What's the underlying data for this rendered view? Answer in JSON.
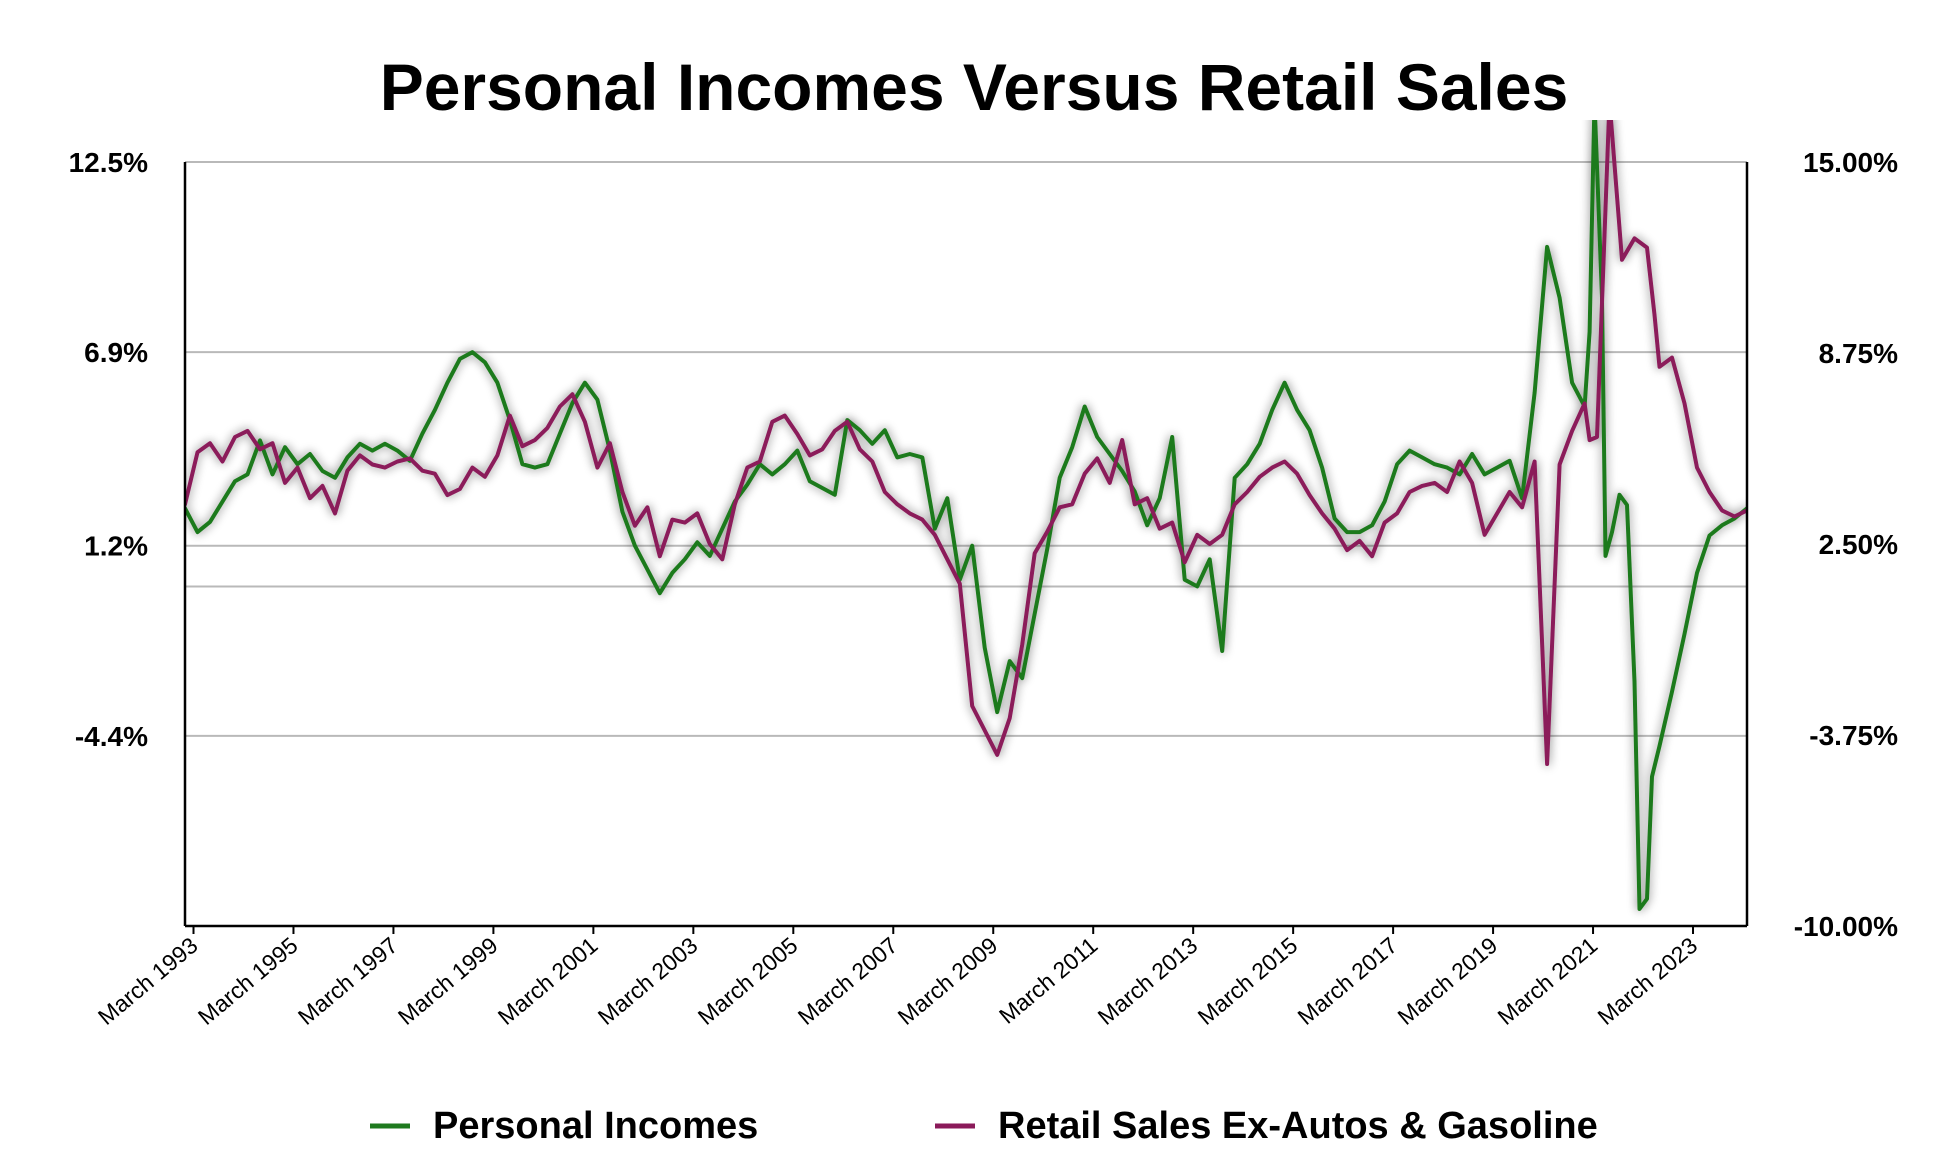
{
  "chart_data": {
    "type": "line",
    "title": "Personal Incomes Versus Retail Sales",
    "x_range": [
      "1993-01",
      "2023-06"
    ],
    "x_ticks": [
      "March 1993",
      "March 1995",
      "March 1997",
      "March 1999",
      "March 2001",
      "March 2003",
      "March 2005",
      "March 2007",
      "March 2009",
      "March 2011",
      "March 2013",
      "March 2015",
      "March 2017",
      "March 2019",
      "March 2021",
      "March 2023"
    ],
    "x_tick_values": [
      1993.17,
      1995.17,
      1997.17,
      1999.17,
      2001.17,
      2003.17,
      2005.17,
      2007.17,
      2009.17,
      2011.17,
      2013.17,
      2015.17,
      2017.17,
      2019.17,
      2021.17,
      2023.17
    ],
    "y_left": {
      "ticks": [
        "12.5%",
        "6.9%",
        "1.2%",
        "-4.4%"
      ],
      "tick_values": [
        12.5,
        6.9,
        1.2,
        -4.4
      ],
      "range": [
        -10.0,
        12.5
      ]
    },
    "y_right": {
      "ticks": [
        "15.00%",
        "8.75%",
        "2.50%",
        "-3.75%",
        "-10.00%"
      ],
      "tick_values": [
        15.0,
        8.75,
        2.5,
        -3.75,
        -10.0
      ],
      "range": [
        -10.0,
        15.0
      ]
    },
    "grid": true,
    "legend_position": "bottom",
    "series": [
      {
        "name": "Personal Incomes",
        "color": "#1f7a1f",
        "axis": "left",
        "points": [
          [
            1993.0,
            2.3
          ],
          [
            1993.25,
            1.6
          ],
          [
            1993.5,
            1.9
          ],
          [
            1993.75,
            2.5
          ],
          [
            1994.0,
            3.1
          ],
          [
            1994.25,
            3.3
          ],
          [
            1994.5,
            4.3
          ],
          [
            1994.75,
            3.3
          ],
          [
            1995.0,
            4.1
          ],
          [
            1995.25,
            3.6
          ],
          [
            1995.5,
            3.9
          ],
          [
            1995.75,
            3.4
          ],
          [
            1996.0,
            3.2
          ],
          [
            1996.25,
            3.8
          ],
          [
            1996.5,
            4.2
          ],
          [
            1996.75,
            4.0
          ],
          [
            1997.0,
            4.2
          ],
          [
            1997.25,
            4.0
          ],
          [
            1997.5,
            3.7
          ],
          [
            1997.75,
            4.5
          ],
          [
            1998.0,
            5.2
          ],
          [
            1998.25,
            6.0
          ],
          [
            1998.5,
            6.7
          ],
          [
            1998.75,
            6.9
          ],
          [
            1999.0,
            6.6
          ],
          [
            1999.25,
            6.0
          ],
          [
            1999.5,
            4.9
          ],
          [
            1999.75,
            3.6
          ],
          [
            2000.0,
            3.5
          ],
          [
            2000.25,
            3.6
          ],
          [
            2000.5,
            4.5
          ],
          [
            2000.75,
            5.4
          ],
          [
            2001.0,
            6.0
          ],
          [
            2001.25,
            5.5
          ],
          [
            2001.5,
            4.0
          ],
          [
            2001.75,
            2.2
          ],
          [
            2002.0,
            1.2
          ],
          [
            2002.25,
            0.5
          ],
          [
            2002.5,
            -0.2
          ],
          [
            2002.75,
            0.4
          ],
          [
            2003.0,
            0.8
          ],
          [
            2003.25,
            1.3
          ],
          [
            2003.5,
            0.9
          ],
          [
            2003.75,
            1.7
          ],
          [
            2004.0,
            2.5
          ],
          [
            2004.25,
            3.0
          ],
          [
            2004.5,
            3.6
          ],
          [
            2004.75,
            3.3
          ],
          [
            2005.0,
            3.6
          ],
          [
            2005.25,
            4.0
          ],
          [
            2005.5,
            3.1
          ],
          [
            2005.75,
            2.9
          ],
          [
            2006.0,
            2.7
          ],
          [
            2006.25,
            4.9
          ],
          [
            2006.5,
            4.6
          ],
          [
            2006.75,
            4.2
          ],
          [
            2007.0,
            4.6
          ],
          [
            2007.25,
            3.8
          ],
          [
            2007.5,
            3.9
          ],
          [
            2007.75,
            3.8
          ],
          [
            2008.0,
            1.7
          ],
          [
            2008.25,
            2.6
          ],
          [
            2008.5,
            0.2
          ],
          [
            2008.75,
            1.2
          ],
          [
            2009.0,
            -1.8
          ],
          [
            2009.25,
            -3.7
          ],
          [
            2009.5,
            -2.2
          ],
          [
            2009.75,
            -2.7
          ],
          [
            2010.0,
            -0.8
          ],
          [
            2010.25,
            1.1
          ],
          [
            2010.5,
            3.2
          ],
          [
            2010.75,
            4.1
          ],
          [
            2011.0,
            5.3
          ],
          [
            2011.25,
            4.4
          ],
          [
            2011.5,
            3.9
          ],
          [
            2011.75,
            3.4
          ],
          [
            2012.0,
            2.8
          ],
          [
            2012.25,
            1.8
          ],
          [
            2012.5,
            2.6
          ],
          [
            2012.75,
            4.4
          ],
          [
            2013.0,
            0.2
          ],
          [
            2013.25,
            0.0
          ],
          [
            2013.5,
            0.8
          ],
          [
            2013.75,
            -1.9
          ],
          [
            2014.0,
            3.2
          ],
          [
            2014.25,
            3.6
          ],
          [
            2014.5,
            4.2
          ],
          [
            2014.75,
            5.2
          ],
          [
            2015.0,
            6.0
          ],
          [
            2015.25,
            5.2
          ],
          [
            2015.5,
            4.6
          ],
          [
            2015.75,
            3.5
          ],
          [
            2016.0,
            2.0
          ],
          [
            2016.25,
            1.6
          ],
          [
            2016.5,
            1.6
          ],
          [
            2016.75,
            1.8
          ],
          [
            2017.0,
            2.5
          ],
          [
            2017.25,
            3.6
          ],
          [
            2017.5,
            4.0
          ],
          [
            2017.75,
            3.8
          ],
          [
            2018.0,
            3.6
          ],
          [
            2018.25,
            3.5
          ],
          [
            2018.5,
            3.3
          ],
          [
            2018.75,
            3.9
          ],
          [
            2019.0,
            3.3
          ],
          [
            2019.25,
            3.5
          ],
          [
            2019.5,
            3.7
          ],
          [
            2019.75,
            2.6
          ],
          [
            2020.0,
            5.7
          ],
          [
            2020.25,
            10.0
          ],
          [
            2020.5,
            8.5
          ],
          [
            2020.75,
            6.0
          ],
          [
            2021.0,
            5.3
          ],
          [
            2021.1,
            7.5
          ],
          [
            2021.2,
            14.3
          ],
          [
            2021.35,
            8.5
          ],
          [
            2021.42,
            0.9
          ],
          [
            2021.55,
            1.6
          ],
          [
            2021.7,
            2.7
          ],
          [
            2021.85,
            2.4
          ],
          [
            2022.0,
            -2.8
          ],
          [
            2022.1,
            -9.5
          ],
          [
            2022.25,
            -9.2
          ],
          [
            2022.35,
            -5.6
          ],
          [
            2022.5,
            -4.7
          ],
          [
            2022.75,
            -3.1
          ],
          [
            2023.0,
            -1.4
          ],
          [
            2023.25,
            0.4
          ],
          [
            2023.5,
            1.5
          ],
          [
            2023.75,
            1.8
          ],
          [
            2024.0,
            2.0
          ],
          [
            2024.25,
            2.3
          ]
        ]
      },
      {
        "name": "Retail Sales Ex-Autos & Gasoline",
        "color": "#8b1a5a",
        "axis": "right",
        "points": [
          [
            1993.0,
            3.8
          ],
          [
            1993.25,
            5.5
          ],
          [
            1993.5,
            5.8
          ],
          [
            1993.75,
            5.2
          ],
          [
            1994.0,
            6.0
          ],
          [
            1994.25,
            6.2
          ],
          [
            1994.5,
            5.6
          ],
          [
            1994.75,
            5.8
          ],
          [
            1995.0,
            4.5
          ],
          [
            1995.25,
            5.0
          ],
          [
            1995.5,
            4.0
          ],
          [
            1995.75,
            4.4
          ],
          [
            1996.0,
            3.5
          ],
          [
            1996.25,
            4.9
          ],
          [
            1996.5,
            5.4
          ],
          [
            1996.75,
            5.1
          ],
          [
            1997.0,
            5.0
          ],
          [
            1997.25,
            5.2
          ],
          [
            1997.5,
            5.3
          ],
          [
            1997.75,
            4.9
          ],
          [
            1998.0,
            4.8
          ],
          [
            1998.25,
            4.1
          ],
          [
            1998.5,
            4.3
          ],
          [
            1998.75,
            5.0
          ],
          [
            1999.0,
            4.7
          ],
          [
            1999.25,
            5.4
          ],
          [
            1999.5,
            6.7
          ],
          [
            1999.75,
            5.7
          ],
          [
            2000.0,
            5.9
          ],
          [
            2000.25,
            6.3
          ],
          [
            2000.5,
            7.0
          ],
          [
            2000.75,
            7.4
          ],
          [
            2001.0,
            6.5
          ],
          [
            2001.25,
            5.0
          ],
          [
            2001.5,
            5.8
          ],
          [
            2001.75,
            4.2
          ],
          [
            2002.0,
            3.1
          ],
          [
            2002.25,
            3.7
          ],
          [
            2002.5,
            2.1
          ],
          [
            2002.75,
            3.3
          ],
          [
            2003.0,
            3.2
          ],
          [
            2003.25,
            3.5
          ],
          [
            2003.5,
            2.5
          ],
          [
            2003.75,
            2.0
          ],
          [
            2004.0,
            3.8
          ],
          [
            2004.25,
            5.0
          ],
          [
            2004.5,
            5.2
          ],
          [
            2004.75,
            6.5
          ],
          [
            2005.0,
            6.7
          ],
          [
            2005.25,
            6.1
          ],
          [
            2005.5,
            5.4
          ],
          [
            2005.75,
            5.6
          ],
          [
            2006.0,
            6.2
          ],
          [
            2006.25,
            6.5
          ],
          [
            2006.5,
            5.6
          ],
          [
            2006.75,
            5.2
          ],
          [
            2007.0,
            4.2
          ],
          [
            2007.25,
            3.8
          ],
          [
            2007.5,
            3.5
          ],
          [
            2007.75,
            3.3
          ],
          [
            2008.0,
            2.8
          ],
          [
            2008.25,
            2.0
          ],
          [
            2008.5,
            1.2
          ],
          [
            2008.75,
            -2.8
          ],
          [
            2009.0,
            -3.6
          ],
          [
            2009.25,
            -4.4
          ],
          [
            2009.5,
            -3.2
          ],
          [
            2009.75,
            -0.8
          ],
          [
            2010.0,
            2.2
          ],
          [
            2010.25,
            2.9
          ],
          [
            2010.5,
            3.7
          ],
          [
            2010.75,
            3.8
          ],
          [
            2011.0,
            4.8
          ],
          [
            2011.25,
            5.3
          ],
          [
            2011.5,
            4.5
          ],
          [
            2011.75,
            5.9
          ],
          [
            2012.0,
            3.8
          ],
          [
            2012.25,
            4.0
          ],
          [
            2012.5,
            3.0
          ],
          [
            2012.75,
            3.2
          ],
          [
            2013.0,
            1.9
          ],
          [
            2013.25,
            2.8
          ],
          [
            2013.5,
            2.5
          ],
          [
            2013.75,
            2.8
          ],
          [
            2014.0,
            3.8
          ],
          [
            2014.25,
            4.2
          ],
          [
            2014.5,
            4.7
          ],
          [
            2014.75,
            5.0
          ],
          [
            2015.0,
            5.2
          ],
          [
            2015.25,
            4.8
          ],
          [
            2015.5,
            4.1
          ],
          [
            2015.75,
            3.5
          ],
          [
            2016.0,
            3.0
          ],
          [
            2016.25,
            2.3
          ],
          [
            2016.5,
            2.6
          ],
          [
            2016.75,
            2.1
          ],
          [
            2017.0,
            3.2
          ],
          [
            2017.25,
            3.5
          ],
          [
            2017.5,
            4.2
          ],
          [
            2017.75,
            4.4
          ],
          [
            2018.0,
            4.5
          ],
          [
            2018.25,
            4.2
          ],
          [
            2018.5,
            5.2
          ],
          [
            2018.75,
            4.5
          ],
          [
            2019.0,
            2.8
          ],
          [
            2019.25,
            3.5
          ],
          [
            2019.5,
            4.2
          ],
          [
            2019.75,
            3.7
          ],
          [
            2020.0,
            5.2
          ],
          [
            2020.25,
            -4.7
          ],
          [
            2020.5,
            5.1
          ],
          [
            2020.75,
            6.2
          ],
          [
            2021.0,
            7.1
          ],
          [
            2021.1,
            5.9
          ],
          [
            2021.25,
            6.0
          ],
          [
            2021.5,
            17.0
          ],
          [
            2021.75,
            11.8
          ],
          [
            2022.0,
            12.5
          ],
          [
            2022.25,
            12.2
          ],
          [
            2022.4,
            10.0
          ],
          [
            2022.5,
            8.3
          ],
          [
            2022.75,
            8.6
          ],
          [
            2023.0,
            7.1
          ],
          [
            2023.25,
            5.0
          ],
          [
            2023.5,
            4.2
          ],
          [
            2023.75,
            3.6
          ],
          [
            2024.0,
            3.4
          ],
          [
            2024.25,
            3.6
          ]
        ]
      }
    ]
  }
}
